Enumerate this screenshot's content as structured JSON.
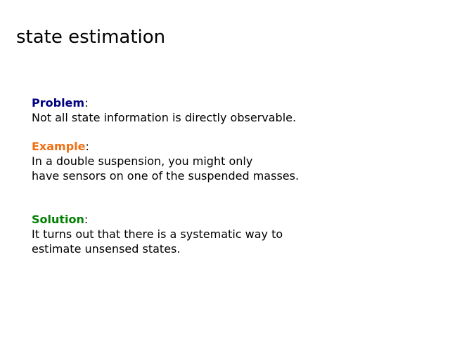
{
  "slide": {
    "title": "state estimation"
  },
  "colors": {
    "problem": "#000080",
    "example": "#f07014",
    "solution": "#008000",
    "text": "#000000",
    "background": "#ffffff"
  },
  "sections": {
    "problem": {
      "label": "Problem",
      "colon": ":",
      "lines": [
        "Not all state information is directly observable."
      ]
    },
    "example": {
      "label": "Example",
      "colon": ":",
      "lines": [
        "In a double suspension, you might only",
        "have sensors on one of the suspended masses."
      ]
    },
    "solution": {
      "label": "Solution",
      "colon": ":",
      "lines": [
        "It turns out that there is a systematic way to",
        "estimate unsensed states."
      ]
    }
  }
}
